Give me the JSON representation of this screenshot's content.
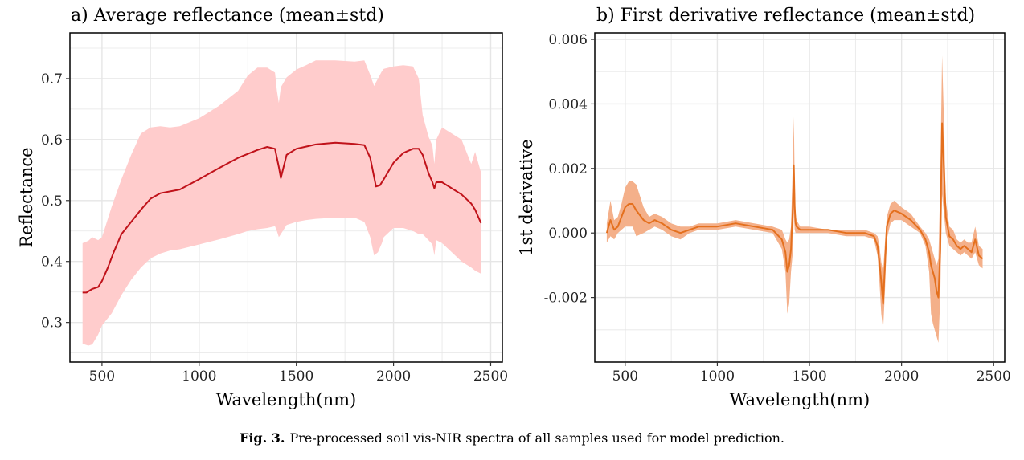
{
  "caption": {
    "label": "Fig. 3.",
    "text": "Pre-processed soil vis-NIR spectra of all samples used for model prediction."
  },
  "colors": {
    "band_a": "#ffcccc",
    "line_a": "#c0121a",
    "band_b": "#f4b08a",
    "line_b": "#e4701e",
    "grid": "#e6e6e6",
    "axis": "#000000"
  },
  "chart_data": [
    {
      "type": "area",
      "title": "a) Average reflectance (mean±std)",
      "xlabel": "Wavelength(nm)",
      "ylabel": "Reflectance",
      "xlim": [
        335,
        2560
      ],
      "ylim": [
        0.235,
        0.775
      ],
      "xticks": [
        500,
        1000,
        1500,
        2000,
        2500
      ],
      "xtick_labels": [
        "500",
        "1000",
        "1500",
        "2000",
        "2500"
      ],
      "yticks": [
        0.3,
        0.4,
        0.5,
        0.6,
        0.7
      ],
      "ytick_labels": [
        "0.3",
        "0.4",
        "0.5",
        "0.6",
        "0.7"
      ],
      "series": [
        {
          "name": "mean",
          "x": [
            400,
            420,
            450,
            480,
            500,
            530,
            560,
            600,
            650,
            700,
            750,
            800,
            900,
            1000,
            1100,
            1200,
            1300,
            1350,
            1390,
            1410,
            1420,
            1450,
            1500,
            1600,
            1700,
            1800,
            1850,
            1880,
            1910,
            1930,
            1950,
            2000,
            2050,
            2100,
            2130,
            2150,
            2180,
            2200,
            2210,
            2220,
            2250,
            2300,
            2350,
            2400,
            2420,
            2450
          ],
          "y": [
            0.349,
            0.349,
            0.355,
            0.358,
            0.368,
            0.39,
            0.415,
            0.445,
            0.465,
            0.485,
            0.503,
            0.512,
            0.518,
            0.535,
            0.553,
            0.57,
            0.583,
            0.588,
            0.585,
            0.555,
            0.537,
            0.575,
            0.585,
            0.592,
            0.595,
            0.593,
            0.591,
            0.57,
            0.523,
            0.525,
            0.535,
            0.562,
            0.578,
            0.585,
            0.585,
            0.575,
            0.545,
            0.53,
            0.52,
            0.53,
            0.53,
            0.52,
            0.51,
            0.495,
            0.485,
            0.463
          ]
        }
      ],
      "band": {
        "x": [
          400,
          430,
          450,
          480,
          500,
          550,
          600,
          650,
          700,
          750,
          800,
          850,
          900,
          1000,
          1100,
          1200,
          1250,
          1300,
          1350,
          1390,
          1400,
          1410,
          1420,
          1450,
          1500,
          1550,
          1600,
          1700,
          1800,
          1850,
          1880,
          1900,
          1920,
          1940,
          1950,
          2000,
          2050,
          2100,
          2130,
          2150,
          2180,
          2200,
          2210,
          2220,
          2250,
          2300,
          2350,
          2400,
          2420,
          2450
        ],
        "upper": [
          0.43,
          0.434,
          0.44,
          0.435,
          0.44,
          0.49,
          0.535,
          0.575,
          0.61,
          0.62,
          0.622,
          0.62,
          0.622,
          0.635,
          0.655,
          0.68,
          0.705,
          0.718,
          0.718,
          0.71,
          0.68,
          0.66,
          0.686,
          0.702,
          0.715,
          0.722,
          0.73,
          0.73,
          0.728,
          0.73,
          0.706,
          0.688,
          0.7,
          0.712,
          0.716,
          0.72,
          0.722,
          0.72,
          0.7,
          0.64,
          0.605,
          0.59,
          0.56,
          0.6,
          0.62,
          0.61,
          0.6,
          0.56,
          0.58,
          0.546
        ],
        "lower": [
          0.265,
          0.262,
          0.264,
          0.28,
          0.295,
          0.315,
          0.345,
          0.37,
          0.39,
          0.405,
          0.413,
          0.418,
          0.42,
          0.428,
          0.436,
          0.445,
          0.45,
          0.453,
          0.455,
          0.458,
          0.45,
          0.44,
          0.445,
          0.46,
          0.465,
          0.468,
          0.47,
          0.472,
          0.472,
          0.465,
          0.44,
          0.41,
          0.415,
          0.43,
          0.44,
          0.455,
          0.455,
          0.45,
          0.445,
          0.445,
          0.435,
          0.428,
          0.41,
          0.435,
          0.43,
          0.415,
          0.4,
          0.39,
          0.385,
          0.38
        ]
      }
    },
    {
      "type": "area",
      "title": "b) First derivative reflectance (mean±std)",
      "xlabel": "Wavelength(nm)",
      "ylabel": "1st derivative",
      "xlim": [
        335,
        2560
      ],
      "ylim": [
        -0.004,
        0.0062
      ],
      "xticks": [
        500,
        1000,
        1500,
        2000,
        2500
      ],
      "xtick_labels": [
        "500",
        "1000",
        "1500",
        "2000",
        "2500"
      ],
      "yticks": [
        -0.002,
        0.0,
        0.002,
        0.004,
        0.006
      ],
      "ytick_labels": [
        "-0.002",
        "0.000",
        "0.002",
        "0.004",
        "0.006"
      ],
      "series": [
        {
          "name": "mean",
          "x": [
            400,
            420,
            440,
            460,
            480,
            500,
            520,
            540,
            560,
            600,
            630,
            660,
            700,
            750,
            800,
            850,
            900,
            950,
            1000,
            1100,
            1200,
            1300,
            1350,
            1370,
            1380,
            1390,
            1400,
            1410,
            1415,
            1420,
            1425,
            1430,
            1450,
            1500,
            1600,
            1700,
            1800,
            1850,
            1870,
            1880,
            1890,
            1900,
            1910,
            1920,
            1940,
            1960,
            2000,
            2050,
            2100,
            2130,
            2150,
            2160,
            2170,
            2180,
            2190,
            2200,
            2210,
            2215,
            2220,
            2230,
            2240,
            2260,
            2280,
            2300,
            2320,
            2340,
            2360,
            2380,
            2400,
            2420,
            2440
          ],
          "y": [
            0.0,
            0.0004,
            0.0001,
            0.0002,
            0.0005,
            0.0008,
            0.0009,
            0.0009,
            0.0007,
            0.0004,
            0.0003,
            0.0004,
            0.0003,
            0.0001,
            0.0,
            0.0001,
            0.0002,
            0.0002,
            0.0002,
            0.0003,
            0.0002,
            0.0001,
            -0.0002,
            -0.0006,
            -0.0012,
            -0.001,
            -0.0005,
            0.0008,
            0.0021,
            0.0008,
            0.0003,
            0.0002,
            0.0001,
            0.0001,
            0.0001,
            0.0,
            0.0,
            -0.0001,
            -0.0004,
            -0.0009,
            -0.0015,
            -0.0022,
            -0.001,
            0.0002,
            0.0006,
            0.0007,
            0.0006,
            0.0004,
            0.0001,
            -0.0002,
            -0.0006,
            -0.001,
            -0.0012,
            -0.0014,
            -0.0018,
            -0.002,
            -0.0005,
            0.0015,
            0.0034,
            0.002,
            0.0005,
            -0.0001,
            -0.0002,
            -0.0004,
            -0.0005,
            -0.0004,
            -0.0005,
            -0.0006,
            -0.0002,
            -0.0007,
            -0.0008
          ]
        }
      ],
      "band": {
        "x": [
          400,
          420,
          440,
          460,
          480,
          500,
          520,
          540,
          560,
          600,
          630,
          660,
          700,
          750,
          800,
          850,
          900,
          950,
          1000,
          1100,
          1200,
          1300,
          1350,
          1370,
          1380,
          1390,
          1400,
          1410,
          1415,
          1420,
          1425,
          1430,
          1450,
          1500,
          1600,
          1700,
          1800,
          1850,
          1870,
          1880,
          1890,
          1900,
          1910,
          1920,
          1940,
          1960,
          2000,
          2050,
          2100,
          2130,
          2150,
          2160,
          2170,
          2180,
          2190,
          2200,
          2210,
          2215,
          2220,
          2230,
          2240,
          2260,
          2280,
          2300,
          2320,
          2340,
          2360,
          2380,
          2400,
          2420,
          2440
        ],
        "upper": [
          0.0003,
          0.001,
          0.0004,
          0.0005,
          0.0009,
          0.0014,
          0.0016,
          0.0016,
          0.0015,
          0.0008,
          0.0005,
          0.0006,
          0.0005,
          0.0003,
          0.0002,
          0.0002,
          0.0003,
          0.0003,
          0.0003,
          0.0004,
          0.0003,
          0.0002,
          0.0001,
          -0.0002,
          -0.0003,
          -0.0002,
          0.0002,
          0.0022,
          0.0036,
          0.0016,
          0.0006,
          0.0004,
          0.0002,
          0.0002,
          0.0001,
          0.0001,
          0.0001,
          0.0,
          -0.0001,
          -0.0004,
          -0.0009,
          -0.0012,
          -0.0003,
          0.0005,
          0.0009,
          0.001,
          0.0008,
          0.0006,
          0.0002,
          0.0,
          -0.0002,
          -0.0004,
          -0.0006,
          -0.0008,
          -0.001,
          -0.0008,
          0.0015,
          0.0035,
          0.0055,
          0.0035,
          0.001,
          0.0002,
          0.0001,
          -0.0002,
          -0.0003,
          -0.0002,
          -0.0003,
          -0.0003,
          0.0002,
          -0.0004,
          -0.0005
        ],
        "lower": [
          -0.0003,
          -0.0001,
          -0.0002,
          0.0,
          0.0001,
          0.0002,
          0.0002,
          0.0002,
          -0.0001,
          0.0,
          0.0001,
          0.0002,
          0.0001,
          -0.0001,
          -0.0002,
          0.0,
          0.0001,
          0.0001,
          0.0001,
          0.0002,
          0.0001,
          0.0,
          -0.0005,
          -0.0012,
          -0.0025,
          -0.0022,
          -0.0012,
          -0.0006,
          0.0006,
          0.0001,
          0.0,
          0.0,
          0.0,
          0.0,
          0.0,
          -0.0001,
          -0.0001,
          -0.0002,
          -0.0007,
          -0.0015,
          -0.0025,
          -0.003,
          -0.0018,
          -0.0002,
          0.0003,
          0.0004,
          0.0004,
          0.0002,
          0.0,
          -0.0004,
          -0.0012,
          -0.0025,
          -0.0028,
          -0.003,
          -0.0032,
          -0.0034,
          -0.002,
          -0.0005,
          0.0012,
          0.0006,
          0.0,
          -0.0004,
          -0.0005,
          -0.0006,
          -0.0007,
          -0.0006,
          -0.0007,
          -0.0008,
          -0.0006,
          -0.001,
          -0.0011
        ]
      }
    }
  ]
}
